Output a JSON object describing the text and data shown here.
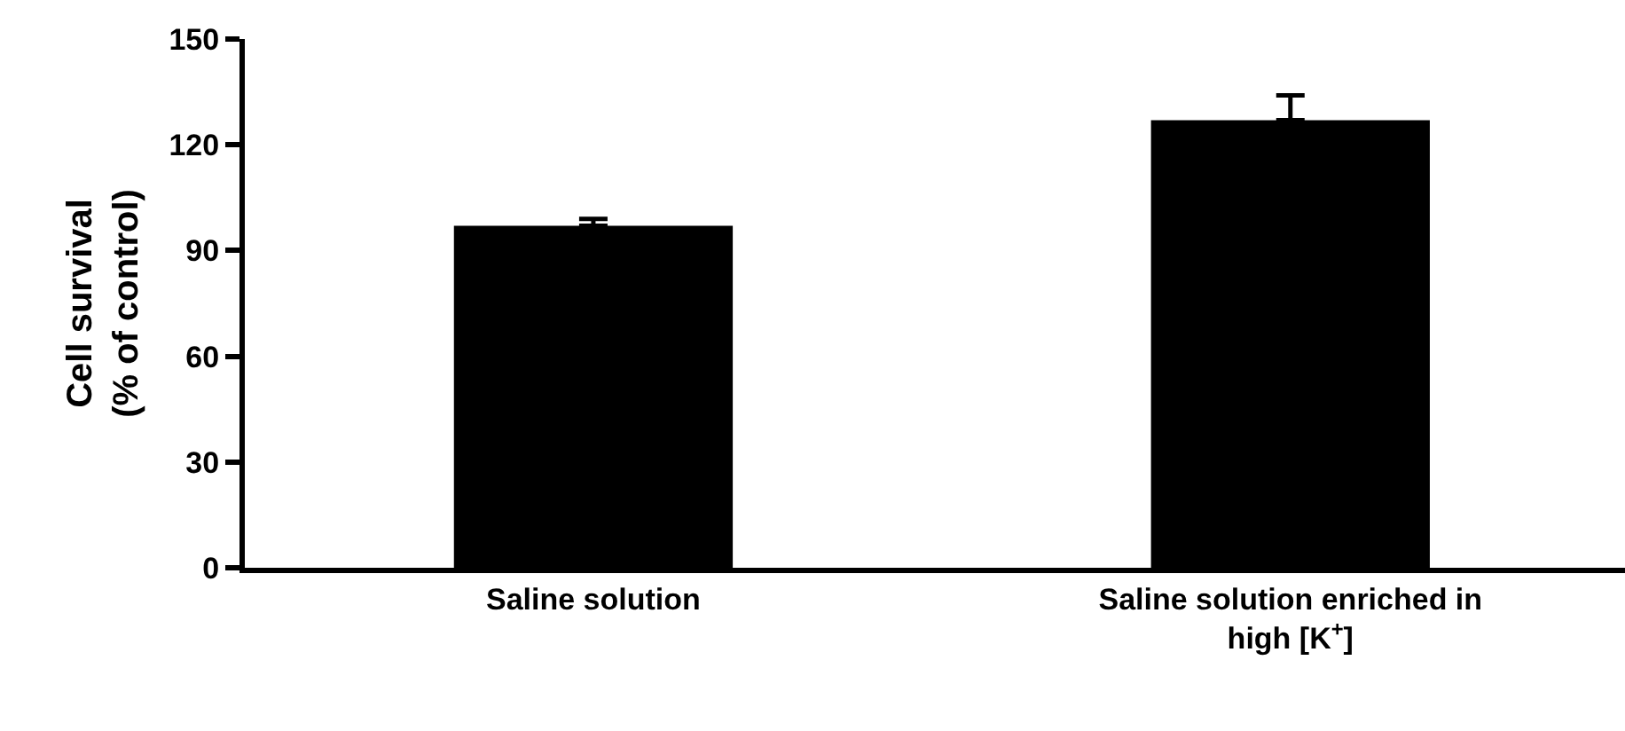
{
  "chart_data": {
    "type": "bar",
    "ylabel": "Cell survival\n(% of control)",
    "categories": [
      "Saline solution",
      "Saline solution enriched in\nhigh [K$^{+}$]"
    ],
    "values": [
      97,
      127
    ],
    "errors": [
      [
        97,
        99
      ],
      [
        127,
        134
      ]
    ],
    "color": "#000000",
    "ylim": [
      0,
      150
    ],
    "yticks": [
      0,
      30,
      60,
      90,
      120,
      150
    ]
  }
}
